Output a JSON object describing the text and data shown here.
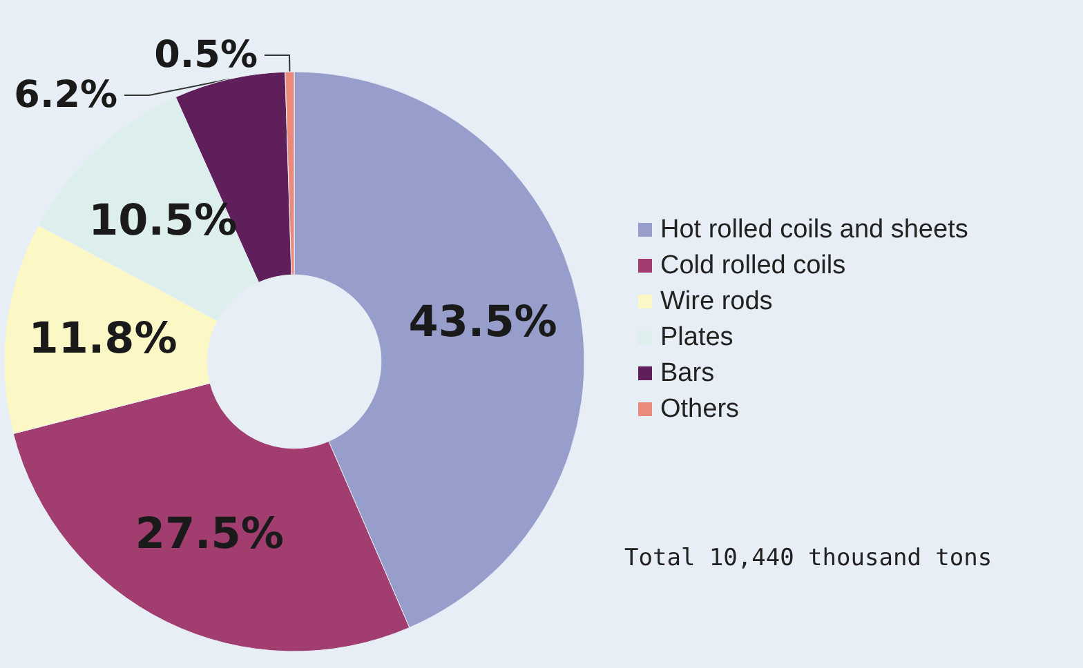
{
  "chart_data": {
    "type": "donut",
    "categories": [
      "Hot rolled coils and sheets",
      "Cold rolled coils",
      "Wire rods",
      "Plates",
      "Bars",
      "Others"
    ],
    "values": [
      43.5,
      27.5,
      11.8,
      10.5,
      6.2,
      0.5
    ],
    "colors": [
      "#989ecb",
      "#a23d6f",
      "#fcf8c6",
      "#ddefec",
      "#5f1f5b",
      "#ea8a7c"
    ],
    "value_labels": [
      "43.5%",
      "27.5%",
      "11.8%",
      "10.5%",
      "6.2%",
      "0.5%"
    ],
    "legend": "right",
    "annotations": [
      "Total 10,440 thousand tons"
    ]
  }
}
